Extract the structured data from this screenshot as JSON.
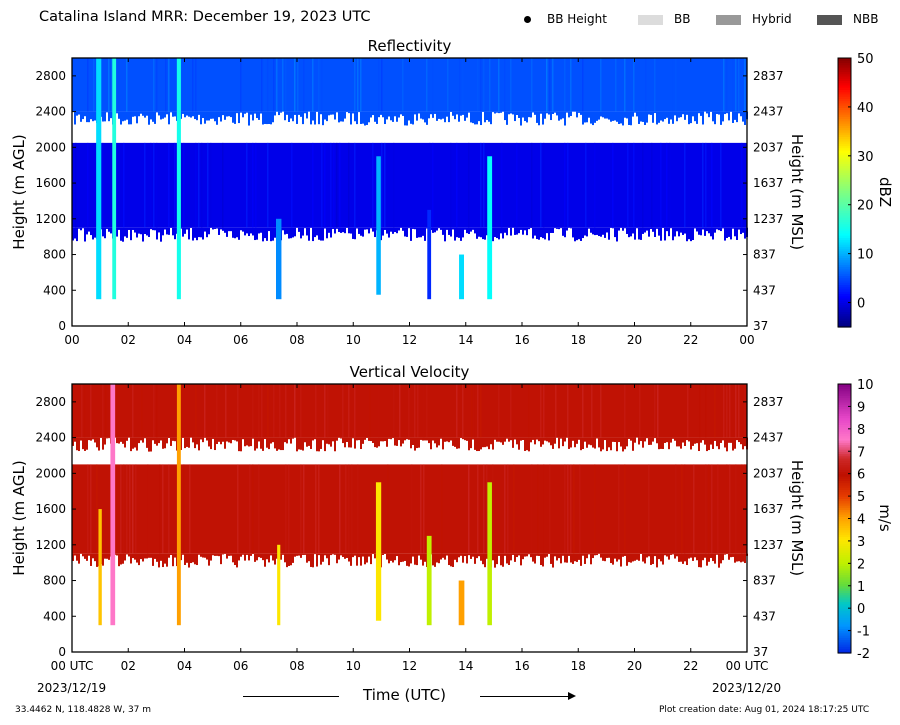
{
  "header": {
    "title": "Catalina Island MRR:  December 19, 2023 UTC",
    "legend": [
      {
        "label": "BB Height",
        "marker": "dot",
        "color": "#000000"
      },
      {
        "label": "BB",
        "marker": "box",
        "color": "#dcdcdc"
      },
      {
        "label": "Hybrid",
        "marker": "box",
        "color": "#999999"
      },
      {
        "label": "NBB",
        "marker": "box",
        "color": "#555555"
      }
    ]
  },
  "footer": {
    "location": "33.4462 N, 118.4828 W, 37 m",
    "creation": "Plot creation date: Aug 01, 2024 18:17:25 UTC",
    "xlabel": "Time (UTC)",
    "start_date": "2023/12/19",
    "end_date": "2023/12/20"
  },
  "chart_data": [
    {
      "type": "heatmap",
      "title": "Reflectivity",
      "ylabel": "Height (m AGL)",
      "ylabel_right": "Height (m MSL)",
      "xlim": [
        0,
        24
      ],
      "ylim": [
        0,
        3000
      ],
      "x_ticks": [
        "00",
        "02",
        "04",
        "06",
        "08",
        "10",
        "12",
        "14",
        "16",
        "18",
        "20",
        "22",
        "00"
      ],
      "y_ticks": [
        0,
        400,
        800,
        1200,
        1600,
        2000,
        2400,
        2800
      ],
      "y_ticks_right": [
        37,
        437,
        837,
        1237,
        1637,
        2037,
        2437,
        2837
      ],
      "colorbar": {
        "label": "dBZ",
        "range": [
          -5,
          50
        ],
        "ticks": [
          0,
          10,
          20,
          30,
          40,
          50
        ],
        "colormap": "jet"
      },
      "layers": [
        {
          "name": "upper echo layer",
          "x_range": [
            0,
            24
          ],
          "height_range": [
            2400,
            3000
          ],
          "value": 5
        },
        {
          "name": "main echo layer",
          "x_range": [
            0,
            24
          ],
          "height_range": [
            1100,
            2050
          ],
          "value": 0
        }
      ],
      "streaks": [
        {
          "x": 0.95,
          "height_range": [
            300,
            3000
          ],
          "value": 12
        },
        {
          "x": 1.5,
          "height_range": [
            300,
            3000
          ],
          "value": 16
        },
        {
          "x": 3.8,
          "height_range": [
            300,
            3000
          ],
          "value": 15
        },
        {
          "x": 7.35,
          "height_range": [
            300,
            1200
          ],
          "value": 8
        },
        {
          "x": 10.9,
          "height_range": [
            350,
            1900
          ],
          "value": 10
        },
        {
          "x": 12.7,
          "height_range": [
            300,
            1300
          ],
          "value": 3
        },
        {
          "x": 13.85,
          "height_range": [
            300,
            800
          ],
          "value": 12
        },
        {
          "x": 14.85,
          "height_range": [
            300,
            1900
          ],
          "value": 14
        }
      ]
    },
    {
      "type": "heatmap",
      "title": "Vertical Velocity",
      "ylabel": "Height (m AGL)",
      "ylabel_right": "Height (m MSL)",
      "xlim": [
        0,
        24
      ],
      "ylim": [
        0,
        3000
      ],
      "x_ticks": [
        "00 UTC",
        "02",
        "04",
        "06",
        "08",
        "10",
        "12",
        "14",
        "16",
        "18",
        "20",
        "22",
        "00 UTC"
      ],
      "y_ticks": [
        0,
        400,
        800,
        1200,
        1600,
        2000,
        2400,
        2800
      ],
      "y_ticks_right": [
        37,
        437,
        837,
        1237,
        1637,
        2037,
        2437,
        2837
      ],
      "colorbar": {
        "label": "m/s",
        "range": [
          -2,
          10
        ],
        "ticks": [
          -2,
          -1,
          0,
          1,
          2,
          3,
          4,
          5,
          6,
          7,
          8,
          9,
          10
        ],
        "colormap": "velocity"
      },
      "layers": [
        {
          "name": "upper echo layer",
          "x_range": [
            0,
            24
          ],
          "height_range": [
            2400,
            3000
          ],
          "value": 6
        },
        {
          "name": "main echo layer",
          "x_range": [
            0,
            24
          ],
          "height_range": [
            1100,
            2100
          ],
          "value": 6
        }
      ],
      "streaks": [
        {
          "x": 1.0,
          "height_range": [
            300,
            1600
          ],
          "value": 3.5
        },
        {
          "x": 1.45,
          "height_range": [
            300,
            3000
          ],
          "value": 7.5
        },
        {
          "x": 3.8,
          "height_range": [
            300,
            3000
          ],
          "value": 4
        },
        {
          "x": 7.35,
          "height_range": [
            300,
            1200
          ],
          "value": 3
        },
        {
          "x": 10.9,
          "height_range": [
            350,
            1900
          ],
          "value": 3
        },
        {
          "x": 12.7,
          "height_range": [
            300,
            1300
          ],
          "value": 2
        },
        {
          "x": 13.85,
          "height_range": [
            300,
            800
          ],
          "value": 4
        },
        {
          "x": 14.85,
          "height_range": [
            300,
            1900
          ],
          "value": 2
        }
      ]
    }
  ]
}
